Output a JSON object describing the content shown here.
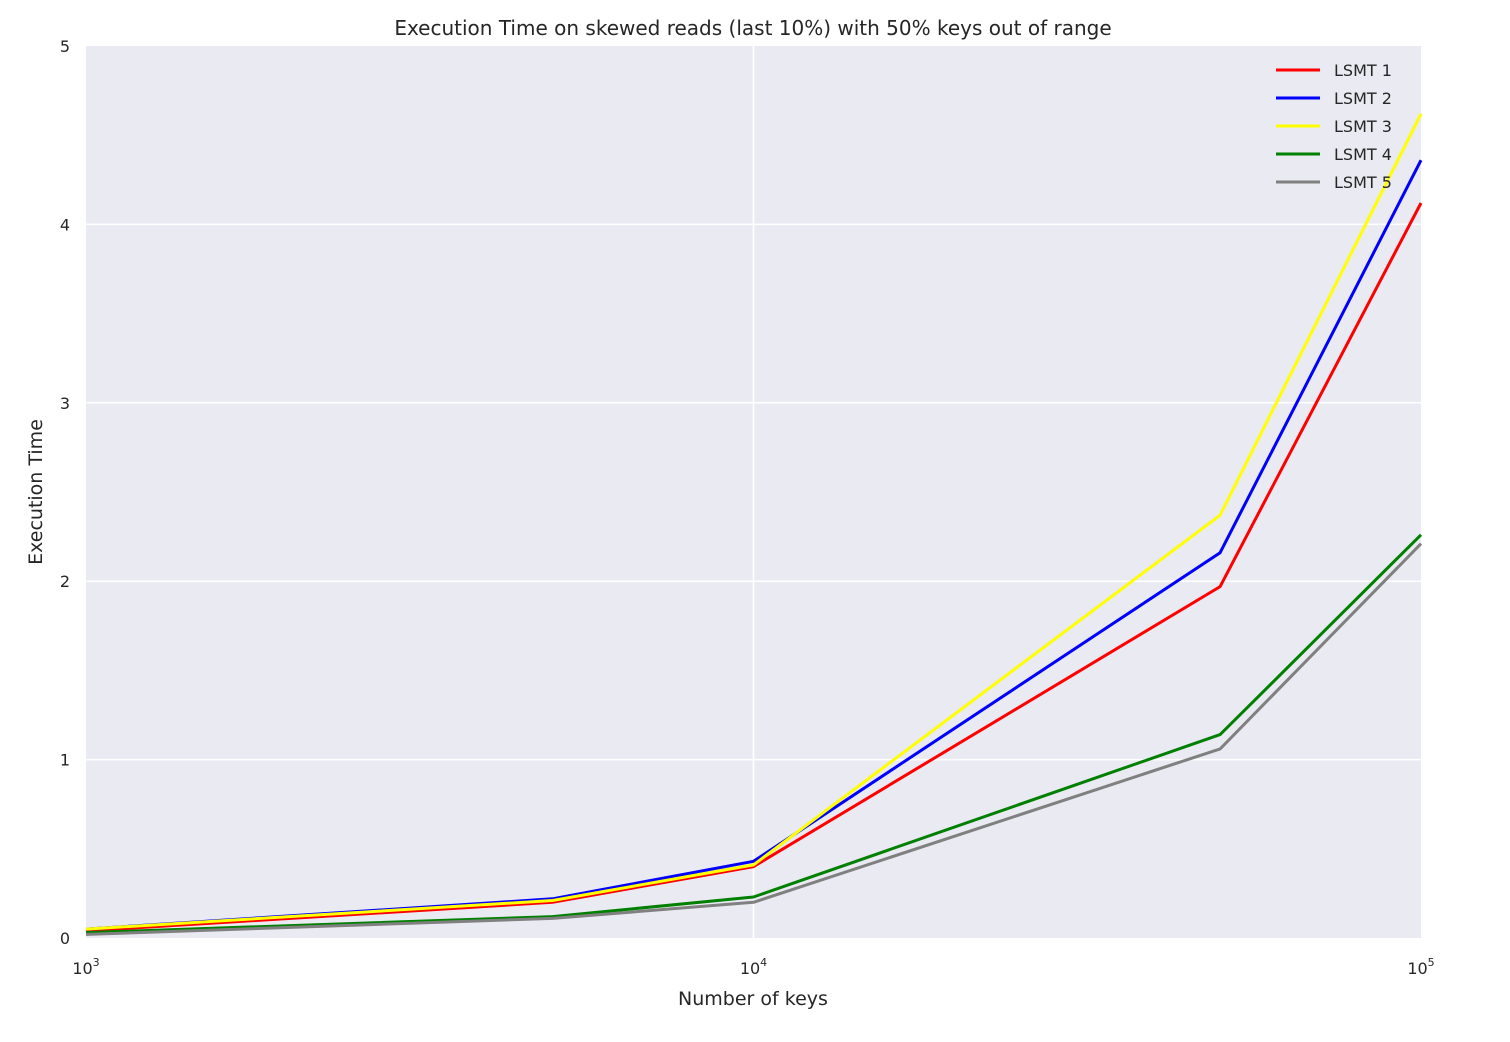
{
  "chart_data": {
    "type": "line",
    "title": "Execution Time on skewed reads (last 10%) with 50% keys out of range",
    "xlabel": "Number of keys",
    "ylabel": "Execution Time",
    "xscale": "log",
    "xlim": [
      1000,
      100000
    ],
    "ylim": [
      0,
      5
    ],
    "yticks": [
      0,
      1,
      2,
      3,
      4,
      5
    ],
    "xticks": [
      {
        "value": 1000,
        "base": "10",
        "exp": "3"
      },
      {
        "value": 10000,
        "base": "10",
        "exp": "4"
      },
      {
        "value": 100000,
        "base": "10",
        "exp": "5"
      }
    ],
    "grid": true,
    "legend_position": "top-right",
    "x": [
      1000,
      5000,
      10000,
      50000,
      100000
    ],
    "series": [
      {
        "name": "LSMT 1",
        "color": "#ff0000",
        "values": [
          0.04,
          0.2,
          0.4,
          1.97,
          4.12
        ]
      },
      {
        "name": "LSMT 2",
        "color": "#0000ff",
        "values": [
          0.05,
          0.22,
          0.43,
          2.16,
          4.36
        ]
      },
      {
        "name": "LSMT 3",
        "color": "#ffff00",
        "values": [
          0.05,
          0.21,
          0.41,
          2.37,
          4.62
        ]
      },
      {
        "name": "LSMT 4",
        "color": "#008000",
        "values": [
          0.03,
          0.12,
          0.23,
          1.14,
          2.26
        ]
      },
      {
        "name": "LSMT 5",
        "color": "#808080",
        "values": [
          0.02,
          0.11,
          0.2,
          1.06,
          2.21
        ]
      }
    ]
  }
}
